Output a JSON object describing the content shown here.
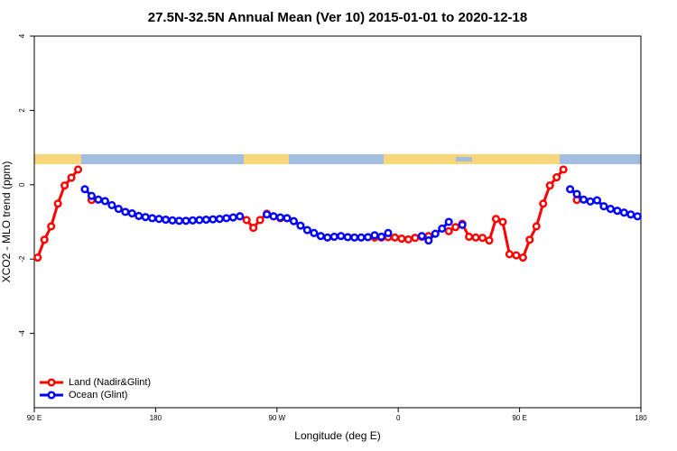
{
  "chart_data": {
    "type": "line",
    "title": "27.5N-32.5N Annual Mean (Ver 10)   2015-01-01 to 2020-12-18",
    "x_label": "Longitude (deg E)",
    "y_label": "XCO2 - MLO trend (ppm)",
    "x": [
      92.5,
      97.5,
      102.5,
      107.5,
      112.5,
      117.5,
      122.5,
      127.5,
      132.5,
      137.5,
      142.5,
      147.5,
      152.5,
      157.5,
      162.5,
      167.5,
      172.5,
      177.5,
      182.5,
      187.5,
      192.5,
      197.5,
      202.5,
      207.5,
      212.5,
      217.5,
      222.5,
      227.5,
      232.5,
      237.5,
      242.5,
      247.5,
      252.5,
      257.5,
      262.5,
      267.5,
      272.5,
      277.5,
      282.5,
      287.5,
      292.5,
      297.5,
      302.5,
      307.5,
      312.5,
      317.5,
      322.5,
      327.5,
      332.5,
      337.5,
      342.5,
      347.5,
      352.5,
      357.5,
      362.5,
      367.5,
      372.5,
      377.5,
      382.5,
      387.5,
      392.5,
      397.5,
      402.5,
      407.5,
      412.5,
      417.5,
      422.5,
      427.5,
      432.5,
      437.5,
      442.5,
      447.5,
      452.5,
      457.5,
      462.5,
      467.5,
      472.5,
      477.5,
      482.5,
      487.5,
      492.5,
      497.5,
      502.5,
      507.5,
      512.5,
      517.5,
      522.5,
      527.5,
      532.5,
      537.5
    ],
    "series": [
      {
        "name": "Land (Nadir&Glint)",
        "color": "#ff0000",
        "values": [
          -1.96,
          -1.48,
          -1.12,
          -0.51,
          -0.02,
          0.19,
          0.41,
          null,
          -0.41,
          null,
          null,
          null,
          null,
          null,
          null,
          null,
          null,
          null,
          null,
          null,
          null,
          null,
          null,
          null,
          null,
          null,
          null,
          null,
          null,
          null,
          -0.85,
          -0.95,
          -1.16,
          -0.95,
          -0.78,
          -0.85,
          -0.9,
          -0.9,
          null,
          null,
          null,
          null,
          null,
          null,
          null,
          null,
          null,
          null,
          null,
          null,
          -1.42,
          -1.42,
          -1.41,
          -1.42,
          -1.45,
          -1.47,
          -1.43,
          -1.4,
          -1.38,
          null,
          null,
          -1.25,
          -1.14,
          -1.05,
          -1.4,
          -1.42,
          -1.43,
          -1.5,
          -0.92,
          -1.0,
          -1.87,
          -1.9,
          -1.96,
          -1.48,
          -1.12,
          -0.51,
          -0.02,
          0.2,
          0.41,
          null,
          -0.41,
          null,
          null,
          null,
          null,
          null,
          null,
          null,
          null,
          null
        ]
      },
      {
        "name": "Ocean (Glint)",
        "color": "#0000ff",
        "values": [
          null,
          null,
          null,
          null,
          null,
          null,
          null,
          -0.12,
          -0.3,
          -0.4,
          -0.44,
          -0.55,
          -0.65,
          -0.73,
          -0.77,
          -0.84,
          -0.87,
          -0.9,
          -0.92,
          -0.94,
          -0.96,
          -0.97,
          -0.97,
          -0.96,
          -0.95,
          -0.94,
          -0.93,
          -0.92,
          -0.9,
          -0.88,
          -0.85,
          null,
          null,
          null,
          -0.8,
          -0.85,
          -0.88,
          -0.9,
          -0.98,
          -1.1,
          -1.22,
          -1.3,
          -1.38,
          -1.42,
          -1.4,
          -1.38,
          -1.41,
          -1.42,
          -1.42,
          -1.41,
          -1.36,
          -1.4,
          -1.3,
          null,
          null,
          null,
          null,
          -1.38,
          -1.5,
          -1.32,
          -1.18,
          -1.0,
          null,
          -1.08,
          null,
          null,
          null,
          null,
          null,
          null,
          null,
          null,
          null,
          null,
          null,
          null,
          null,
          null,
          null,
          -0.12,
          -0.25,
          -0.4,
          -0.45,
          -0.42,
          -0.58,
          -0.65,
          -0.7,
          -0.75,
          -0.8,
          -0.85
        ]
      }
    ],
    "xlim": [
      90,
      540
    ],
    "xticks": [
      {
        "value": 90,
        "label": "90 E"
      },
      180,
      {
        "value": 270,
        "label": "90 W"
      },
      {
        "value": 360,
        "label": "0"
      },
      {
        "value": 450,
        "label": "90 E"
      },
      {
        "value": 540,
        "label": "180"
      }
    ],
    "ylim": [
      -6,
      4
    ],
    "yticks": [
      -4,
      -2,
      0,
      2,
      4
    ],
    "legend": "bottomleft"
  }
}
